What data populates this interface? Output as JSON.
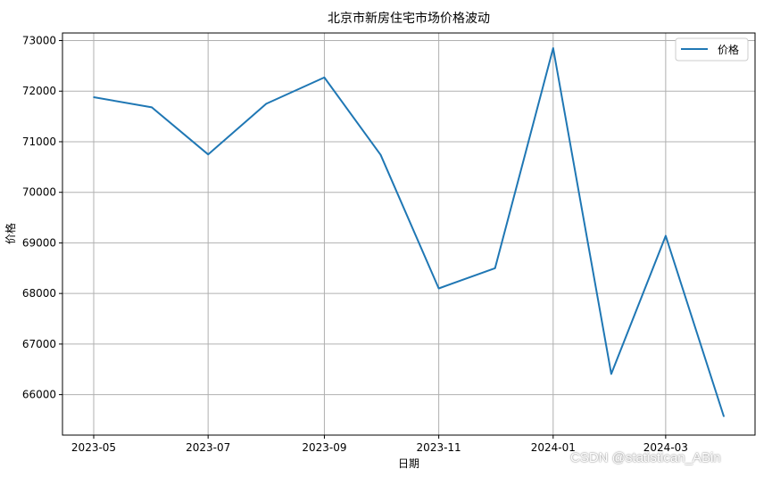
{
  "chart_data": {
    "type": "line",
    "title": "北京市新房住宅市场价格波动",
    "xlabel": "日期",
    "ylabel": "价格",
    "x": [
      "2023-05-01",
      "2023-06-01",
      "2023-07-01",
      "2023-08-01",
      "2023-09-01",
      "2023-10-01",
      "2023-11-01",
      "2023-12-01",
      "2024-01-01",
      "2024-02-01",
      "2024-03-01",
      "2024-04-01"
    ],
    "series": [
      {
        "name": "价格",
        "values": [
          71880,
          71680,
          70750,
          71750,
          72270,
          70740,
          68100,
          68500,
          72850,
          66410,
          69140,
          65570
        ]
      }
    ],
    "x_ticks": [
      "2023-05",
      "2023-07",
      "2023-09",
      "2023-11",
      "2024-01",
      "2024-03"
    ],
    "y_ticks": [
      66000,
      67000,
      68000,
      69000,
      70000,
      71000,
      72000,
      73000
    ],
    "ylim": [
      65200,
      73150
    ],
    "grid": true,
    "legend_position": "top-right",
    "line_color": "#1f77b4"
  },
  "watermark": "CSDN @statistican_ABin"
}
